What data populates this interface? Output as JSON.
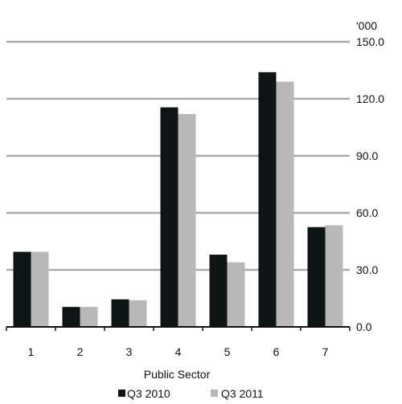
{
  "chart_data": {
    "type": "bar",
    "categories": [
      "1",
      "2",
      "3",
      "4",
      "5",
      "6",
      "7"
    ],
    "series": [
      {
        "name": "Q3 2010",
        "values": [
          39.5,
          10.5,
          14.5,
          115.5,
          38.0,
          134.0,
          52.5
        ],
        "color": "#0f1414"
      },
      {
        "name": "Q3 2011",
        "values": [
          39.5,
          10.5,
          14.0,
          112.0,
          34.0,
          129.0,
          53.5
        ],
        "color": "#b8b8b8"
      }
    ],
    "xlabel": "Public Sector",
    "ylabel": "",
    "units_label": "'000",
    "ylim": [
      0,
      150
    ],
    "yticks": [
      "0.0",
      "30.0",
      "60.0",
      "90.0",
      "120.0",
      "150.0"
    ],
    "ytick_values": [
      0,
      30,
      60,
      90,
      120,
      150
    ],
    "grid": true,
    "legend_position": "bottom",
    "y_axis_side": "right"
  }
}
